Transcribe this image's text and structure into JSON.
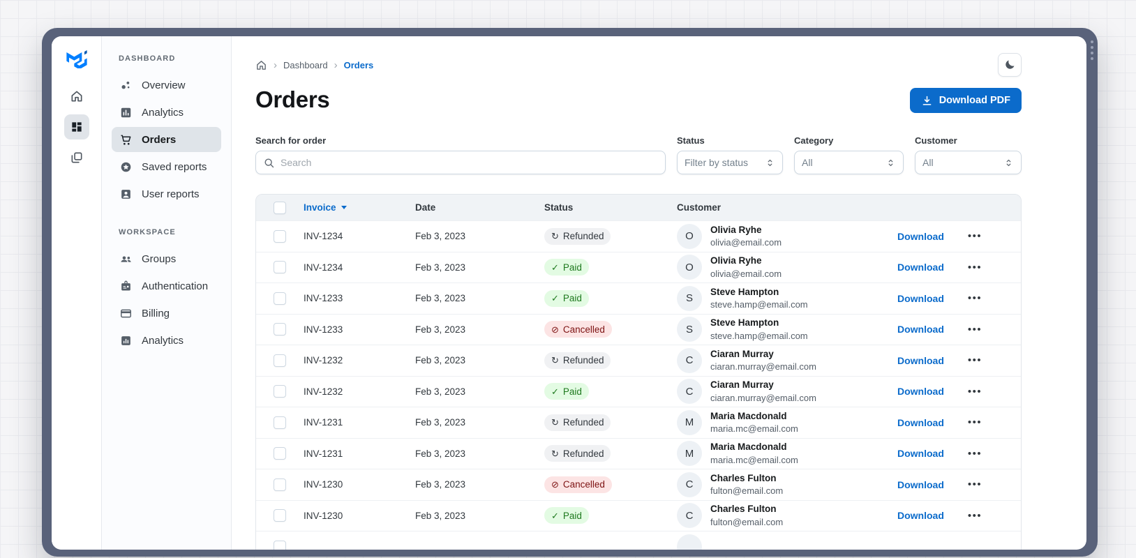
{
  "window": {
    "scrollbar": "right-edge-scrollbar"
  },
  "brand": {
    "name": "MUI",
    "logo_icon": "mui-logo-icon",
    "color_primary": "#007FFF",
    "color_secondary": "#0059B2"
  },
  "rail": {
    "items": [
      {
        "icon": "home-icon",
        "selected": false
      },
      {
        "icon": "dashboard-grid-icon",
        "selected": true
      },
      {
        "icon": "stacked-pages-icon",
        "selected": false
      }
    ]
  },
  "sidebar": {
    "sections": [
      {
        "title": "DASHBOARD",
        "items": [
          {
            "label": "Overview",
            "icon": "bubble-chart-icon",
            "selected": false
          },
          {
            "label": "Analytics",
            "icon": "bar-chart-box-icon",
            "selected": false
          },
          {
            "label": "Orders",
            "icon": "shopping-cart-icon",
            "selected": true
          },
          {
            "label": "Saved reports",
            "icon": "star-circle-icon",
            "selected": false
          },
          {
            "label": "User reports",
            "icon": "person-box-icon",
            "selected": false
          }
        ]
      },
      {
        "title": "WORKSPACE",
        "items": [
          {
            "label": "Groups",
            "icon": "groups-icon",
            "selected": false
          },
          {
            "label": "Authentication",
            "icon": "badge-icon",
            "selected": false
          },
          {
            "label": "Billing",
            "icon": "credit-card-icon",
            "selected": false
          },
          {
            "label": "Analytics",
            "icon": "chart-square-icon",
            "selected": false
          }
        ]
      }
    ]
  },
  "header": {
    "breadcrumb": {
      "home_icon": "home-icon",
      "items": [
        "Dashboard",
        "Orders"
      ]
    },
    "title": "Orders",
    "download_button": {
      "label": "Download PDF",
      "icon": "download-icon"
    },
    "theme_toggle_icon": "moon-icon"
  },
  "filters": {
    "search": {
      "label": "Search for order",
      "placeholder": "Search",
      "value": "",
      "icon": "search-icon"
    },
    "status": {
      "label": "Status",
      "value": "Filter by status",
      "icon": "unfold-more-icon"
    },
    "category": {
      "label": "Category",
      "value": "All",
      "icon": "unfold-more-icon"
    },
    "customer": {
      "label": "Customer",
      "value": "All",
      "icon": "unfold-more-icon"
    }
  },
  "table": {
    "columns": {
      "invoice": "Invoice",
      "date": "Date",
      "status": "Status",
      "customer": "Customer"
    },
    "sort": {
      "column": "Invoice",
      "direction": "desc"
    },
    "status_icons": {
      "refunded": "autorenew-icon",
      "paid": "check-icon",
      "cancelled": "block-icon"
    },
    "status_colors": {
      "refunded": {
        "bg": "#F0F1F3",
        "text": "#32383E"
      },
      "paid": {
        "bg": "#E3FBE3",
        "text": "#1F7A1F"
      },
      "cancelled": {
        "bg": "#FCE4E4",
        "text": "#7D1212"
      }
    },
    "rows": [
      {
        "invoice": "INV-1234",
        "date": "Feb 3, 2023",
        "status": "Refunded",
        "status_type": "refunded",
        "avatar": "O",
        "name": "Olivia Ryhe",
        "email": "olivia@email.com",
        "action": "Download"
      },
      {
        "invoice": "INV-1234",
        "date": "Feb 3, 2023",
        "status": "Paid",
        "status_type": "paid",
        "avatar": "O",
        "name": "Olivia Ryhe",
        "email": "olivia@email.com",
        "action": "Download"
      },
      {
        "invoice": "INV-1233",
        "date": "Feb 3, 2023",
        "status": "Paid",
        "status_type": "paid",
        "avatar": "S",
        "name": "Steve Hampton",
        "email": "steve.hamp@email.com",
        "action": "Download"
      },
      {
        "invoice": "INV-1233",
        "date": "Feb 3, 2023",
        "status": "Cancelled",
        "status_type": "cancelled",
        "avatar": "S",
        "name": "Steve Hampton",
        "email": "steve.hamp@email.com",
        "action": "Download"
      },
      {
        "invoice": "INV-1232",
        "date": "Feb 3, 2023",
        "status": "Refunded",
        "status_type": "refunded",
        "avatar": "C",
        "name": "Ciaran Murray",
        "email": "ciaran.murray@email.com",
        "action": "Download"
      },
      {
        "invoice": "INV-1232",
        "date": "Feb 3, 2023",
        "status": "Paid",
        "status_type": "paid",
        "avatar": "C",
        "name": "Ciaran Murray",
        "email": "ciaran.murray@email.com",
        "action": "Download"
      },
      {
        "invoice": "INV-1231",
        "date": "Feb 3, 2023",
        "status": "Refunded",
        "status_type": "refunded",
        "avatar": "M",
        "name": "Maria Macdonald",
        "email": "maria.mc@email.com",
        "action": "Download"
      },
      {
        "invoice": "INV-1231",
        "date": "Feb 3, 2023",
        "status": "Refunded",
        "status_type": "refunded",
        "avatar": "M",
        "name": "Maria Macdonald",
        "email": "maria.mc@email.com",
        "action": "Download"
      },
      {
        "invoice": "INV-1230",
        "date": "Feb 3, 2023",
        "status": "Cancelled",
        "status_type": "cancelled",
        "avatar": "C",
        "name": "Charles Fulton",
        "email": "fulton@email.com",
        "action": "Download"
      },
      {
        "invoice": "INV-1230",
        "date": "Feb 3, 2023",
        "status": "Paid",
        "status_type": "paid",
        "avatar": "C",
        "name": "Charles Fulton",
        "email": "fulton@email.com",
        "action": "Download"
      }
    ],
    "partial_row_clipped": true
  },
  "colors": {
    "accent": "#0B6BCB",
    "frame": "#59627A",
    "table_header_bg": "#F0F3F6",
    "nav_selected_bg": "#DFE4E9"
  }
}
